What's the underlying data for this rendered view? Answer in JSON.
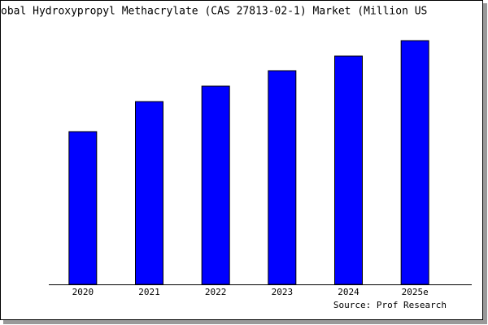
{
  "chart_data": {
    "type": "bar",
    "title": "obal Hydroxypropyl Methacrylate (CAS 27813-02-1) Market (Million US",
    "categories": [
      "2020",
      "2021",
      "2022",
      "2023",
      "2024",
      "2025e"
    ],
    "values": [
      188,
      225,
      244,
      263,
      281,
      300
    ],
    "color": "#0000ff",
    "source": "Source: Prof Research"
  }
}
